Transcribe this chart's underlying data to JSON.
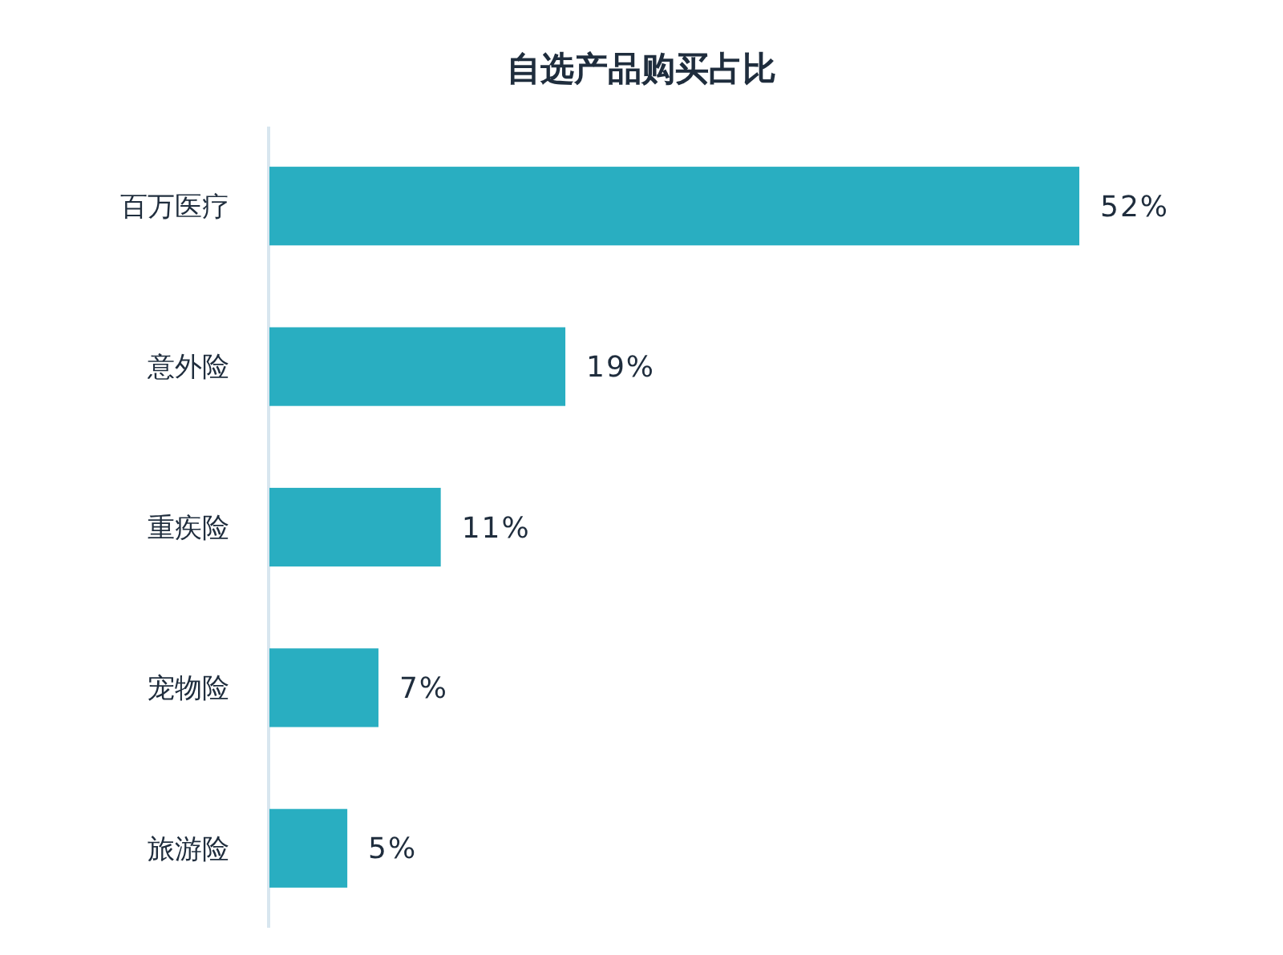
{
  "chart_data": {
    "type": "bar",
    "orientation": "horizontal",
    "title": "自选产品购买占比",
    "categories": [
      "百万医疗",
      "意外险",
      "重疾险",
      "宠物险",
      "旅游险"
    ],
    "values": [
      52,
      19,
      11,
      7,
      5
    ],
    "value_labels": [
      "52%",
      "19%",
      "11%",
      "7%",
      "5%"
    ],
    "color": "#29aec1"
  }
}
